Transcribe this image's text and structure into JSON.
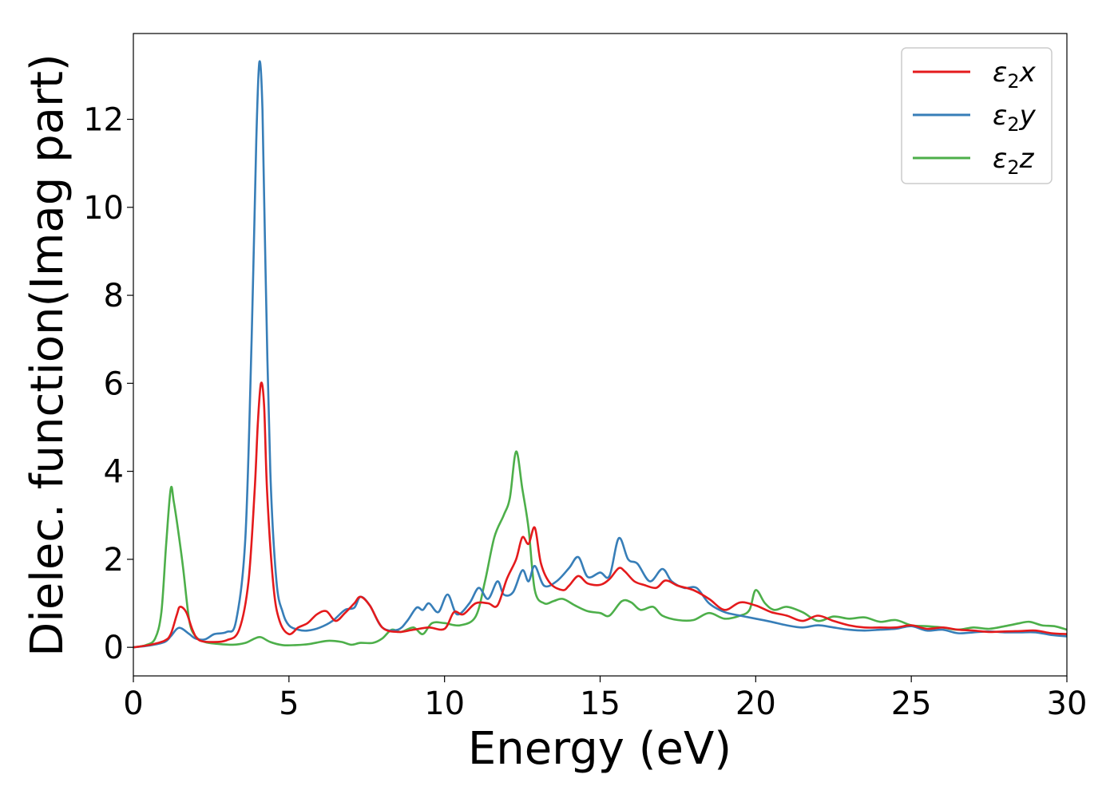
{
  "chart_data": {
    "type": "line",
    "title": "",
    "xlabel": "Energy (eV)",
    "ylabel": "Dielec. function(Imag part)",
    "xlim": [
      0,
      30
    ],
    "ylim": [
      -0.65,
      13.95
    ],
    "xticks": [
      0,
      5,
      10,
      15,
      20,
      25,
      30
    ],
    "yticks": [
      0,
      2,
      4,
      6,
      8,
      10,
      12
    ],
    "grid": false,
    "legend_position": "top-right",
    "series": [
      {
        "name": "ε₂x",
        "legend_base": "ε",
        "legend_sub": "2",
        "legend_suffix": "x",
        "color": "#e41a1c",
        "x": [
          0,
          0.5,
          1.0,
          1.2,
          1.4,
          1.5,
          1.7,
          1.9,
          2.1,
          2.5,
          3.0,
          3.4,
          3.7,
          3.9,
          4.0,
          4.1,
          4.2,
          4.3,
          4.5,
          4.7,
          5.0,
          5.3,
          5.6,
          5.9,
          6.2,
          6.5,
          6.8,
          7.1,
          7.3,
          7.6,
          8.0,
          8.5,
          9.0,
          9.5,
          10.0,
          10.3,
          10.6,
          11.0,
          11.4,
          11.7,
          12.0,
          12.3,
          12.5,
          12.7,
          12.9,
          13.1,
          13.4,
          13.8,
          14.0,
          14.3,
          14.6,
          15.0,
          15.3,
          15.6,
          15.8,
          16.1,
          16.4,
          16.8,
          17.1,
          17.5,
          18.0,
          18.5,
          19.0,
          19.5,
          20.0,
          20.5,
          21.0,
          21.5,
          22.0,
          22.5,
          23.0,
          23.5,
          24.0,
          24.5,
          25.0,
          25.5,
          26.0,
          26.5,
          27.0,
          27.5,
          28.0,
          28.5,
          29.0,
          29.5,
          30.0
        ],
        "values": [
          0.0,
          0.05,
          0.15,
          0.3,
          0.75,
          0.92,
          0.8,
          0.4,
          0.17,
          0.12,
          0.16,
          0.4,
          1.5,
          3.6,
          5.1,
          6.0,
          5.5,
          3.5,
          1.4,
          0.6,
          0.3,
          0.45,
          0.55,
          0.75,
          0.82,
          0.6,
          0.78,
          1.0,
          1.15,
          0.95,
          0.45,
          0.35,
          0.4,
          0.45,
          0.42,
          0.8,
          0.75,
          1.0,
          1.0,
          0.95,
          1.55,
          2.0,
          2.5,
          2.35,
          2.72,
          1.9,
          1.45,
          1.3,
          1.4,
          1.62,
          1.45,
          1.42,
          1.55,
          1.8,
          1.72,
          1.5,
          1.42,
          1.35,
          1.52,
          1.4,
          1.3,
          1.1,
          0.85,
          1.02,
          0.95,
          0.8,
          0.72,
          0.6,
          0.72,
          0.6,
          0.5,
          0.45,
          0.45,
          0.45,
          0.5,
          0.42,
          0.45,
          0.4,
          0.38,
          0.35,
          0.36,
          0.37,
          0.38,
          0.32,
          0.3
        ]
      },
      {
        "name": "ε₂y",
        "legend_base": "ε",
        "legend_sub": "2",
        "legend_suffix": "y",
        "color": "#377eb8",
        "x": [
          0,
          0.5,
          1.0,
          1.2,
          1.4,
          1.55,
          1.8,
          2.0,
          2.3,
          2.6,
          3.0,
          3.3,
          3.6,
          3.8,
          3.95,
          4.05,
          4.15,
          4.25,
          4.4,
          4.6,
          4.8,
          5.0,
          5.3,
          5.6,
          6.0,
          6.4,
          6.8,
          7.1,
          7.3,
          7.6,
          8.0,
          8.5,
          8.8,
          9.1,
          9.3,
          9.5,
          9.8,
          10.1,
          10.4,
          10.8,
          11.1,
          11.4,
          11.7,
          11.9,
          12.2,
          12.5,
          12.7,
          12.9,
          13.2,
          13.6,
          14.0,
          14.3,
          14.6,
          15.0,
          15.3,
          15.6,
          15.9,
          16.2,
          16.6,
          17.0,
          17.3,
          17.7,
          18.1,
          18.5,
          19.0,
          19.5,
          20.0,
          20.5,
          21.0,
          21.5,
          22.0,
          22.5,
          23.0,
          23.5,
          24.0,
          24.5,
          25.0,
          25.5,
          26.0,
          26.5,
          27.0,
          27.5,
          28.0,
          28.5,
          29.0,
          29.5,
          30.0
        ],
        "values": [
          0.0,
          0.04,
          0.12,
          0.25,
          0.42,
          0.43,
          0.3,
          0.2,
          0.18,
          0.3,
          0.35,
          0.6,
          2.5,
          7.0,
          11.5,
          13.3,
          12.2,
          8.5,
          4.0,
          1.5,
          0.8,
          0.5,
          0.4,
          0.38,
          0.45,
          0.6,
          0.85,
          0.9,
          1.15,
          0.95,
          0.45,
          0.4,
          0.6,
          0.9,
          0.85,
          1.0,
          0.8,
          1.2,
          0.75,
          1.0,
          1.35,
          1.1,
          1.5,
          1.2,
          1.25,
          1.75,
          1.5,
          1.85,
          1.4,
          1.5,
          1.8,
          2.05,
          1.6,
          1.7,
          1.62,
          2.48,
          2.0,
          1.9,
          1.5,
          1.78,
          1.5,
          1.35,
          1.35,
          1.0,
          0.8,
          0.72,
          0.65,
          0.58,
          0.5,
          0.45,
          0.5,
          0.45,
          0.4,
          0.38,
          0.4,
          0.42,
          0.48,
          0.38,
          0.4,
          0.32,
          0.34,
          0.36,
          0.34,
          0.34,
          0.34,
          0.28,
          0.25
        ]
      },
      {
        "name": "ε₂z",
        "legend_base": "ε",
        "legend_sub": "2",
        "legend_suffix": "z",
        "color": "#4daf4a",
        "x": [
          0,
          0.4,
          0.7,
          0.9,
          1.05,
          1.2,
          1.3,
          1.45,
          1.6,
          1.8,
          2.0,
          2.3,
          2.7,
          3.2,
          3.6,
          3.9,
          4.1,
          4.4,
          4.8,
          5.2,
          5.6,
          6.0,
          6.3,
          6.7,
          7.0,
          7.3,
          7.7,
          8.0,
          8.3,
          8.6,
          9.0,
          9.3,
          9.6,
          10.0,
          10.5,
          11.0,
          11.3,
          11.6,
          11.9,
          12.1,
          12.3,
          12.5,
          12.7,
          12.9,
          13.2,
          13.5,
          13.8,
          14.2,
          14.6,
          15.0,
          15.3,
          15.7,
          16.0,
          16.3,
          16.7,
          17.0,
          17.5,
          18.0,
          18.5,
          19.0,
          19.5,
          19.8,
          20.0,
          20.3,
          20.6,
          21.0,
          21.5,
          22.0,
          22.5,
          23.0,
          23.5,
          24.0,
          24.5,
          25.0,
          25.5,
          26.0,
          26.5,
          27.0,
          27.5,
          28.0,
          28.5,
          28.8,
          29.2,
          29.6,
          30.0
        ],
        "values": [
          0.0,
          0.05,
          0.2,
          0.8,
          2.3,
          3.6,
          3.3,
          2.6,
          1.8,
          0.6,
          0.25,
          0.12,
          0.08,
          0.06,
          0.1,
          0.2,
          0.23,
          0.12,
          0.05,
          0.05,
          0.07,
          0.12,
          0.15,
          0.12,
          0.06,
          0.1,
          0.1,
          0.2,
          0.4,
          0.35,
          0.45,
          0.3,
          0.55,
          0.55,
          0.5,
          0.7,
          1.5,
          2.5,
          3.0,
          3.4,
          4.45,
          3.6,
          2.7,
          1.3,
          1.0,
          1.05,
          1.1,
          0.95,
          0.82,
          0.78,
          0.72,
          1.05,
          1.02,
          0.85,
          0.92,
          0.72,
          0.62,
          0.62,
          0.78,
          0.65,
          0.72,
          0.85,
          1.3,
          1.0,
          0.85,
          0.92,
          0.8,
          0.6,
          0.7,
          0.65,
          0.68,
          0.58,
          0.62,
          0.5,
          0.48,
          0.45,
          0.4,
          0.45,
          0.42,
          0.48,
          0.55,
          0.58,
          0.5,
          0.48,
          0.4
        ]
      }
    ]
  }
}
